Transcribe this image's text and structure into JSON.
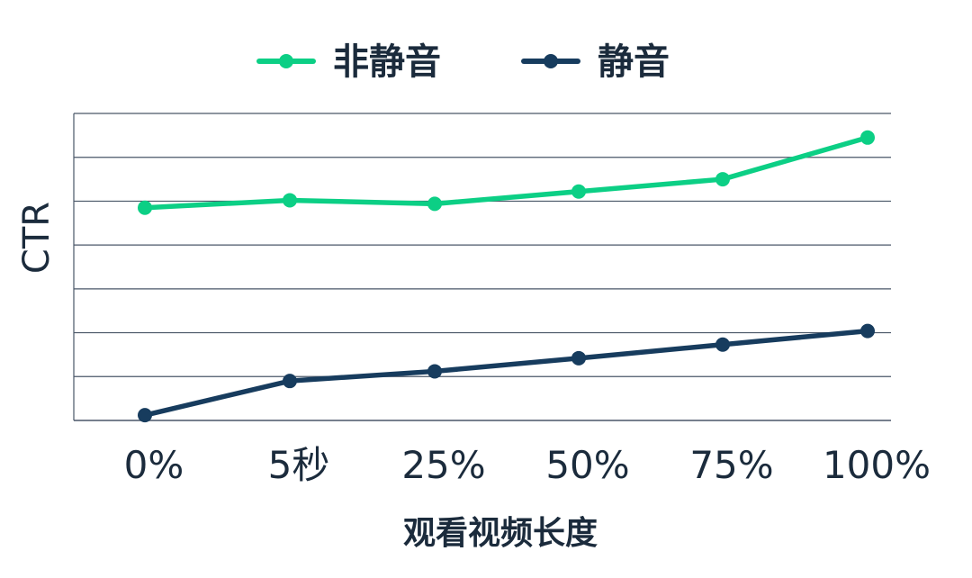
{
  "chart_data": {
    "type": "line",
    "title": "",
    "xlabel": "观看视频长度",
    "ylabel": "CTR",
    "categories": [
      "0%",
      "5秒",
      "25%",
      "50%",
      "75%",
      "100%"
    ],
    "series": [
      {
        "name": "非静音",
        "color": "#0ccf85",
        "values": [
          4.85,
          5.02,
          4.94,
          5.22,
          5.5,
          6.45
        ]
      },
      {
        "name": "静音",
        "color": "#173c5e",
        "values": [
          0.12,
          0.9,
          1.12,
          1.42,
          1.73,
          2.04
        ]
      }
    ],
    "ylim": [
      0,
      7
    ],
    "grid": true,
    "legend_position": "top-center",
    "show_y_tick_labels": false,
    "grid_color": "#4a5768",
    "text_color": "#1b2b3c"
  }
}
